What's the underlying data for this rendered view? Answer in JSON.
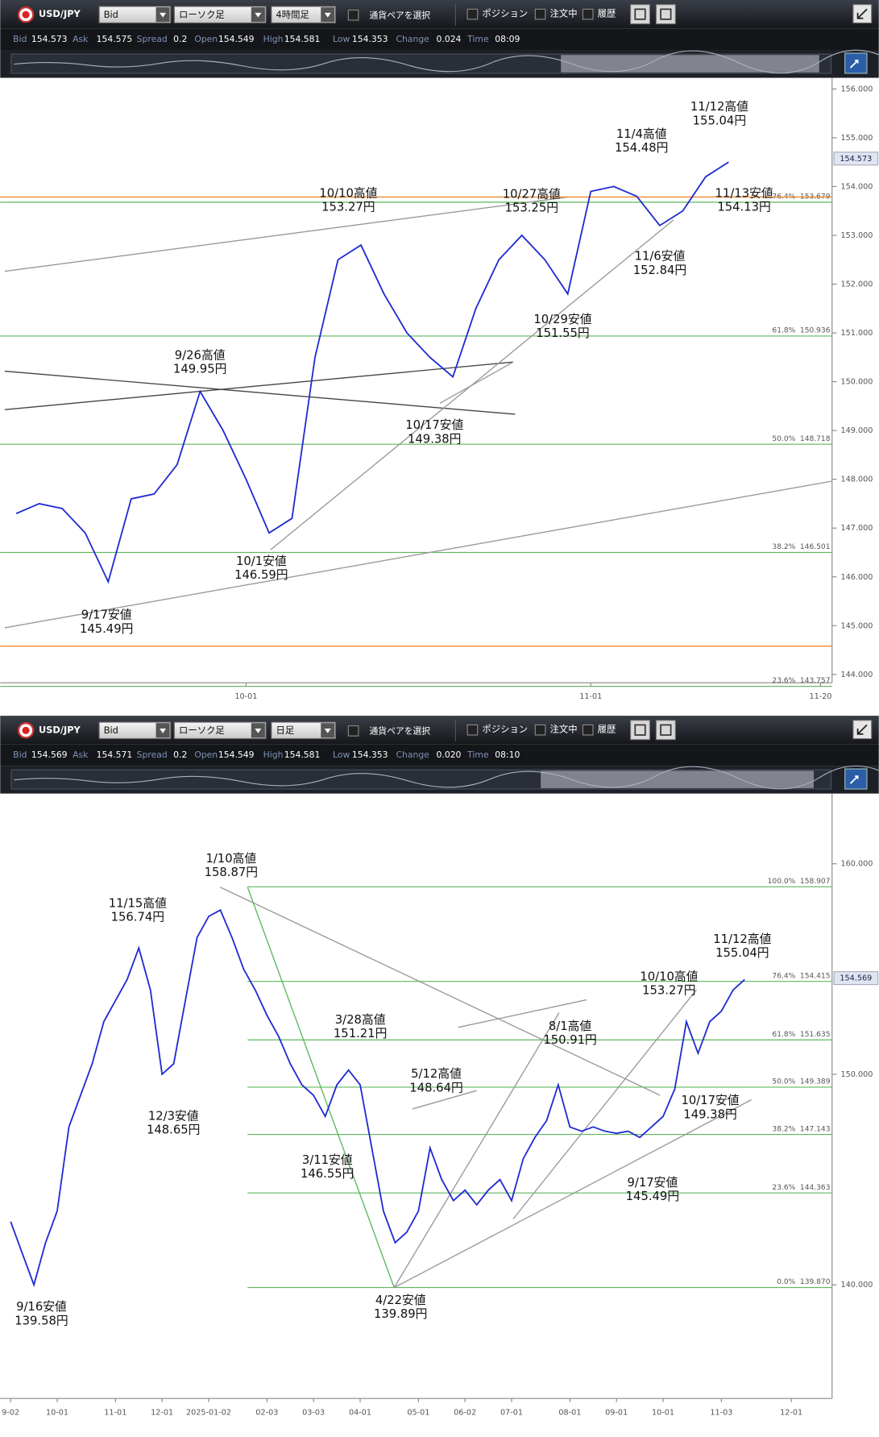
{
  "panels": [
    {
      "toolbar": {
        "symbol": "USD/JPY",
        "price_type": "Bid",
        "chart_type": "ローソク足",
        "timeframe": "4時間足",
        "pair_select": "通貨ペアを選択",
        "checks": [
          "ポジション",
          "注文中",
          "履歴"
        ]
      },
      "quote": [
        {
          "label": "Bid",
          "value": "154.573"
        },
        {
          "label": "Ask",
          "value": "154.575"
        },
        {
          "label": "Spread",
          "value": "0.2"
        },
        {
          "label": "Open",
          "value": "154.549"
        },
        {
          "label": "High",
          "value": "154.581"
        },
        {
          "label": "Low",
          "value": "154.353"
        },
        {
          "label": "Change",
          "value": "0.024"
        },
        {
          "label": "Time",
          "value": "08:09"
        }
      ],
      "chart_data": {
        "type": "line",
        "color": "#1f2bd1",
        "categories": [
          null,
          null,
          null,
          null,
          null,
          null,
          null,
          null,
          null,
          null,
          "10-01",
          null,
          null,
          null,
          null,
          null,
          null,
          null,
          null,
          null,
          null,
          null,
          null,
          null,
          null,
          "11-01",
          null,
          null,
          null,
          null,
          null,
          null,
          null,
          null,
          null,
          "11-20"
        ],
        "values": [
          147.3,
          147.5,
          147.4,
          146.9,
          145.9,
          147.6,
          147.7,
          148.3,
          149.8,
          149.0,
          148.0,
          146.9,
          147.2,
          150.5,
          152.5,
          152.8,
          151.8,
          151.0,
          150.5,
          150.1,
          151.5,
          152.5,
          153.0,
          152.5,
          151.8,
          153.9,
          154.0,
          153.8,
          153.2,
          153.5,
          154.2,
          154.5,
          null,
          null,
          null,
          null
        ],
        "ylim": [
          143.83,
          156.17
        ],
        "yticks": [
          {
            "value": 144,
            "label": "144.000"
          },
          {
            "value": 145,
            "label": "145.000"
          },
          {
            "value": 146,
            "label": "146.000"
          },
          {
            "value": 147,
            "label": "147.000"
          },
          {
            "value": 148,
            "label": "148.000"
          },
          {
            "value": 149,
            "label": "149.000"
          },
          {
            "value": 150,
            "label": "150.000"
          },
          {
            "value": 151,
            "label": "151.000"
          },
          {
            "value": 152,
            "label": "152.000"
          },
          {
            "value": 153,
            "label": "153.000"
          },
          {
            "value": 154,
            "label": "154.000"
          },
          {
            "value": 155,
            "label": "155.000"
          },
          {
            "value": 156,
            "label": "156.000"
          }
        ],
        "current_price": 154.573,
        "fib_levels": [
          {
            "pct": "76.4%",
            "value": 153.679,
            "label": "153.679"
          },
          {
            "pct": "61.8%",
            "value": 150.936,
            "label": "150.936"
          },
          {
            "pct": "50.0%",
            "value": 148.718,
            "label": "148.718"
          },
          {
            "pct": "38.2%",
            "value": 146.501,
            "label": "146.501"
          },
          {
            "pct": "23.6%",
            "value": 143.757,
            "label": "143.757"
          }
        ],
        "annotations": [
          {
            "title": "11/12高値",
            "price_label": "155.04円",
            "value": 155.04
          },
          {
            "title": "11/4高値",
            "price_label": "154.48円",
            "value": 154.48
          },
          {
            "title": "10/10高値",
            "price_label": "153.27円",
            "value": 153.27
          },
          {
            "title": "10/27高値",
            "price_label": "153.25円",
            "value": 153.25
          },
          {
            "title": "11/13安値",
            "price_label": "154.13円",
            "value": 154.13
          },
          {
            "title": "9/26高値",
            "price_label": "149.95円",
            "value": 149.95
          },
          {
            "title": "11/6安値",
            "price_label": "152.84円",
            "value": 152.84
          },
          {
            "title": "10/29安値",
            "price_label": "151.55円",
            "value": 151.55
          },
          {
            "title": "10/17安値",
            "price_label": "149.38円",
            "value": 149.38
          },
          {
            "title": "10/1安値",
            "price_label": "146.59円",
            "value": 146.59
          },
          {
            "title": "9/17安値",
            "price_label": "145.49円",
            "value": 145.49
          }
        ]
      }
    },
    {
      "toolbar": {
        "symbol": "USD/JPY",
        "price_type": "Bid",
        "chart_type": "ローソク足",
        "timeframe": "日足",
        "pair_select": "通貨ペアを選択",
        "checks": [
          "ポジション",
          "注文中",
          "履歴"
        ]
      },
      "quote": [
        {
          "label": "Bid",
          "value": "154.569"
        },
        {
          "label": "Ask",
          "value": "154.571"
        },
        {
          "label": "Spread",
          "value": "0.2"
        },
        {
          "label": "Open",
          "value": "154.549"
        },
        {
          "label": "High",
          "value": "154.581"
        },
        {
          "label": "Low",
          "value": "154.353"
        },
        {
          "label": "Change",
          "value": "0.020"
        },
        {
          "label": "Time",
          "value": "08:10"
        }
      ],
      "chart_data": {
        "type": "line",
        "color": "#1f2bd1",
        "categories": [
          "9-02",
          null,
          null,
          null,
          "10-01",
          null,
          null,
          null,
          null,
          "11-01",
          null,
          null,
          null,
          "12-01",
          null,
          null,
          null,
          "2025-01-02",
          null,
          null,
          null,
          null,
          "02-03",
          null,
          null,
          null,
          "03-03",
          null,
          null,
          null,
          "04-01",
          null,
          null,
          null,
          null,
          "05-01",
          null,
          null,
          null,
          "06-02",
          null,
          null,
          null,
          "07-01",
          null,
          null,
          null,
          null,
          "08-01",
          null,
          null,
          null,
          "09-01",
          null,
          null,
          null,
          "10-01",
          null,
          null,
          null,
          null,
          "11-03",
          null,
          null,
          null,
          null,
          null,
          "12-01",
          null,
          null,
          null
        ],
        "values": [
          143,
          141.5,
          140,
          142,
          143.5,
          147.5,
          149,
          150.5,
          152.5,
          153.5,
          154.5,
          156,
          154,
          150,
          150.5,
          153.5,
          156.5,
          157.5,
          157.8,
          156.5,
          155,
          154,
          152.8,
          151.8,
          150.5,
          149.5,
          149,
          148,
          149.5,
          150.2,
          149.5,
          146.5,
          143.5,
          142,
          142.5,
          143.5,
          146.5,
          145,
          144,
          144.5,
          143.8,
          144.5,
          145,
          144,
          146,
          147,
          147.8,
          149.5,
          147.5,
          147.3,
          147.5,
          147.3,
          147.2,
          147.3,
          147,
          147.5,
          148,
          149.3,
          152.5,
          151,
          152.5,
          153,
          154,
          154.5,
          null,
          null,
          null,
          null,
          null,
          null,
          null
        ],
        "ylim": [
          134.6,
          163.2
        ],
        "yticks": [
          {
            "value": 140,
            "label": "140.000"
          },
          {
            "value": 150,
            "label": "150.000"
          },
          {
            "value": 160,
            "label": "160.000"
          }
        ],
        "current_price": 154.569,
        "fib_levels": [
          {
            "pct": "100.0%",
            "value": 158.907,
            "label": "158.907"
          },
          {
            "pct": "76.4%",
            "value": 154.415,
            "label": "154.415"
          },
          {
            "pct": "61.8%",
            "value": 151.635,
            "label": "151.635"
          },
          {
            "pct": "50.0%",
            "value": 149.389,
            "label": "149.389"
          },
          {
            "pct": "38.2%",
            "value": 147.143,
            "label": "147.143"
          },
          {
            "pct": "23.6%",
            "value": 144.363,
            "label": "144.363"
          },
          {
            "pct": "0.0%",
            "value": 139.87,
            "label": "139.870"
          }
        ],
        "annotations": [
          {
            "title": "1/10高値",
            "price_label": "158.87円",
            "value": 158.87
          },
          {
            "title": "11/15高値",
            "price_label": "156.74円",
            "value": 156.74
          },
          {
            "title": "11/12高値",
            "price_label": "155.04円",
            "value": 155.04
          },
          {
            "title": "10/10高値",
            "price_label": "153.27円",
            "value": 153.27
          },
          {
            "title": "3/28高値",
            "price_label": "151.21円",
            "value": 151.21
          },
          {
            "title": "8/1高値",
            "price_label": "150.91円",
            "value": 150.91
          },
          {
            "title": "5/12高値",
            "price_label": "148.64円",
            "value": 148.64
          },
          {
            "title": "10/17安値",
            "price_label": "149.38円",
            "value": 149.38
          },
          {
            "title": "12/3安値",
            "price_label": "148.65円",
            "value": 148.65
          },
          {
            "title": "3/11安値",
            "price_label": "146.55円",
            "value": 146.55
          },
          {
            "title": "9/17安値",
            "price_label": "145.49円",
            "value": 145.49
          },
          {
            "title": "4/22安値",
            "price_label": "139.89円",
            "value": 139.89
          },
          {
            "title": "9/16安値",
            "price_label": "139.58円",
            "value": 139.58
          }
        ]
      }
    }
  ]
}
